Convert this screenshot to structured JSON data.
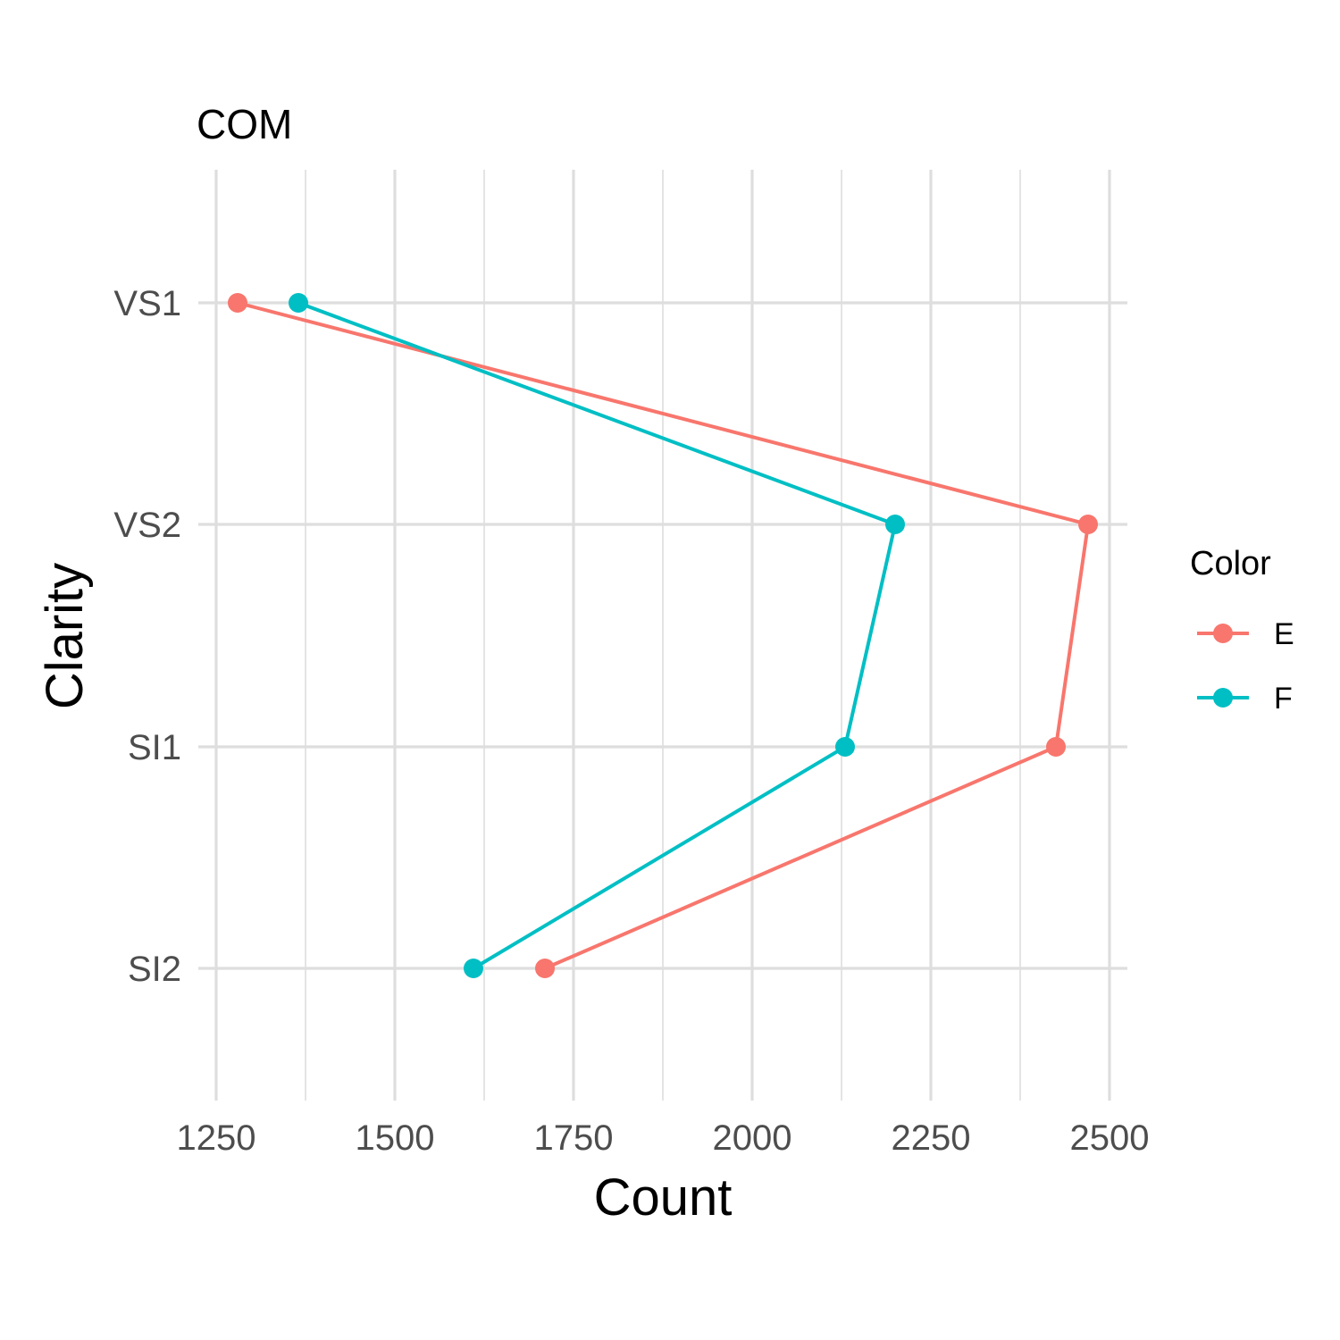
{
  "chart_data": {
    "type": "line",
    "title": "COM",
    "xlabel": "Count",
    "ylabel": "Clarity",
    "xlim": [
      1245,
      2555
    ],
    "x_ticks": [
      1250,
      1500,
      1750,
      2000,
      2250,
      2500
    ],
    "x_tick_labels": [
      "1250",
      "1500",
      "1750",
      "2000",
      "2250",
      "2500"
    ],
    "categories": [
      "VS1",
      "VS2",
      "SI1",
      "SI2"
    ],
    "grid": true,
    "legend": {
      "title": "Color",
      "position": "right"
    },
    "series": [
      {
        "name": "E",
        "color": "#F8766D",
        "values": [
          1280,
          2470,
          2425,
          1710
        ]
      },
      {
        "name": "F",
        "color": "#00BFC4",
        "values": [
          1365,
          2200,
          2130,
          1610
        ]
      }
    ]
  }
}
